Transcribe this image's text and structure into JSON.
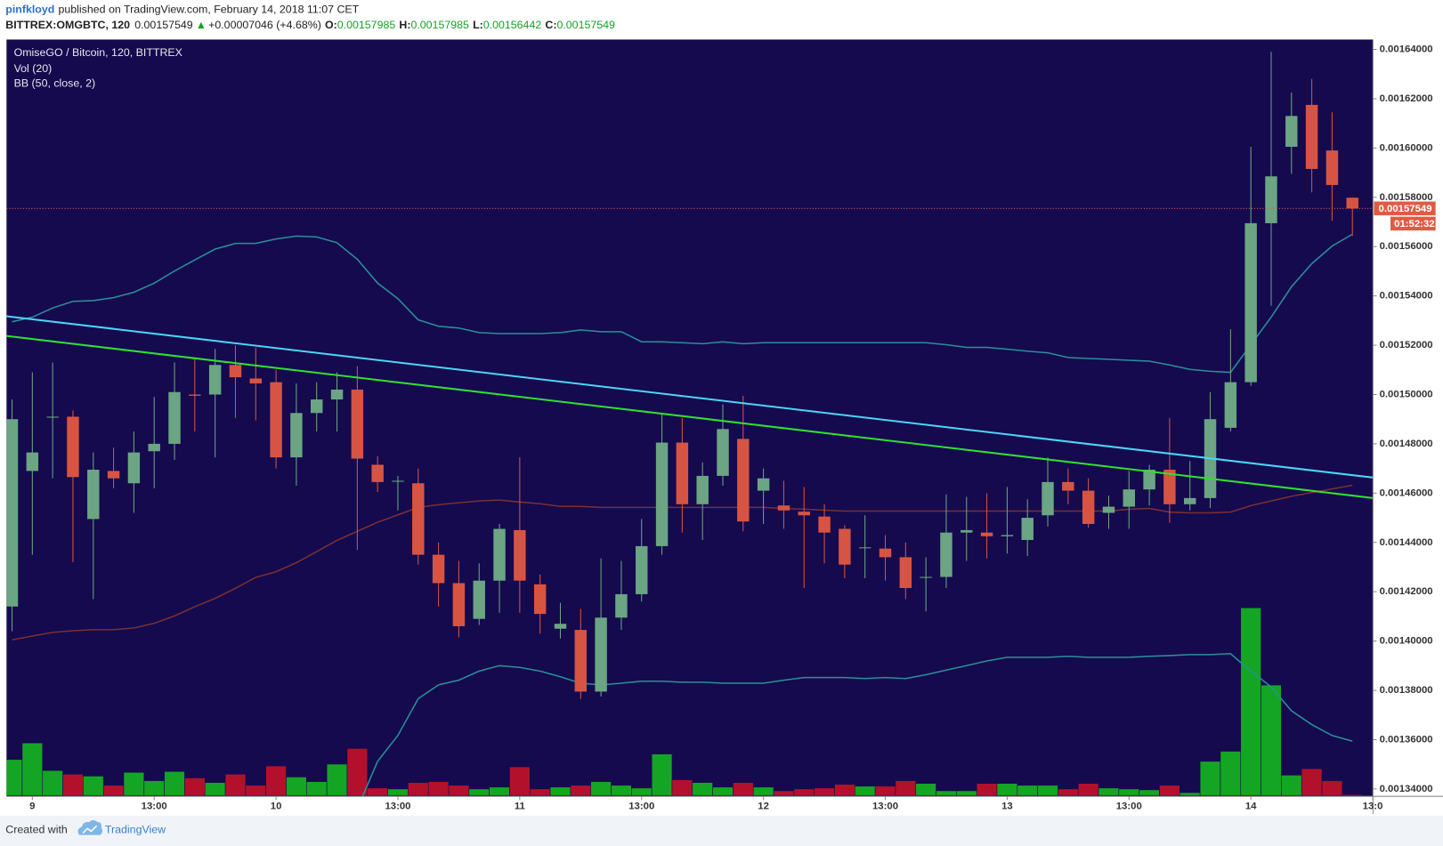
{
  "header": {
    "author": "pinfkloyd",
    "published": "published on TradingView.com, February 14, 2018 11:07 CET",
    "symbol": "BITTREX:OMGBTC, 120",
    "price": "0.00157549",
    "arrow": "▲",
    "change": "+0.00007046 (+4.68%)",
    "o_label": "O:",
    "o": "0.00157985",
    "h_label": "H:",
    "h": "0.00157985",
    "l_label": "L:",
    "l": "0.00156442",
    "c_label": "C:",
    "c": "0.00157549"
  },
  "chart_data": {
    "type": "candlestick",
    "title": "OmiseGO / Bitcoin, 120, BITTREX",
    "indicators": [
      "Vol (20)",
      "BB (50, close, 2)"
    ],
    "background": "#150a4e",
    "up_color": "#6ba583",
    "down_color": "#d75442",
    "categories": [
      null,
      "9",
      null,
      null,
      null,
      null,
      null,
      "13:00",
      null,
      null,
      null,
      null,
      null,
      "10",
      null,
      null,
      null,
      null,
      null,
      "13:00",
      null,
      null,
      null,
      null,
      null,
      "11",
      null,
      null,
      null,
      null,
      null,
      "13:00",
      null,
      null,
      null,
      null,
      null,
      "12",
      null,
      null,
      null,
      null,
      null,
      "13:00",
      null,
      null,
      null,
      null,
      null,
      "13",
      null,
      null,
      null,
      null,
      null,
      "13:00",
      null,
      null,
      null,
      null,
      null,
      "14",
      null,
      null,
      null,
      null,
      null,
      "13:0"
    ],
    "open": [
      0.001414,
      0.001469,
      0.001491,
      0.001491,
      0.0014495,
      0.001469,
      0.001464,
      0.001477,
      0.00148,
      0.0015,
      0.0015,
      0.001512,
      0.0015065,
      0.001505,
      0.0014745,
      0.0014925,
      0.001498,
      0.001502,
      0.0014715,
      0.001465,
      0.001464,
      0.001435,
      0.0014235,
      0.001409,
      0.0014245,
      0.001445,
      0.001423,
      0.001405,
      0.0014045,
      0.0013795,
      0.0014095,
      0.001419,
      0.0014385,
      0.0014805,
      0.0014555,
      0.001467,
      0.001482,
      0.001461,
      0.001455,
      0.0014525,
      0.0014505,
      0.0014455,
      0.001438,
      0.0014375,
      0.001434,
      0.001426,
      0.001426,
      0.001444,
      0.001444,
      0.0014425,
      0.001441,
      0.001451,
      0.0014645,
      0.001461,
      0.001452,
      0.0014545,
      0.0014615,
      0.0014695,
      0.0014555,
      0.001458,
      0.0014865,
      0.001505,
      0.0015695,
      0.0016005,
      0.0016175,
      0.001599,
      0.00157985,
      null
    ],
    "high": [
      0.001498,
      0.001509,
      0.001513,
      0.0014935,
      0.0014765,
      0.0014785,
      0.001485,
      0.001499,
      0.001513,
      0.0015145,
      0.0015185,
      0.00152,
      0.001519,
      0.00151,
      0.0015045,
      0.001505,
      0.001509,
      0.0015115,
      0.001475,
      0.001467,
      0.00147,
      0.00144,
      0.0014325,
      0.0014315,
      0.0014475,
      0.0014745,
      0.001427,
      0.0014155,
      0.001413,
      0.0014335,
      0.0014325,
      0.0014495,
      0.001492,
      0.0014905,
      0.0014725,
      0.001496,
      0.0014995,
      0.00147,
      0.001465,
      0.0014625,
      0.0014555,
      0.001447,
      0.001451,
      0.001443,
      0.00144,
      0.001434,
      0.0014595,
      0.0014585,
      0.00146,
      0.0014625,
      0.0014575,
      0.0014745,
      0.00147,
      0.001466,
      0.001459,
      0.001469,
      0.0014715,
      0.0014905,
      0.001473,
      0.001501,
      0.0015265,
      0.0016005,
      0.001639,
      0.0016225,
      0.001628,
      0.0016145,
      0.00157985,
      null
    ],
    "low": [
      0.001404,
      0.001435,
      0.001466,
      0.001432,
      0.001417,
      0.001462,
      0.001452,
      0.001462,
      0.0014735,
      0.001485,
      0.0014745,
      0.0014905,
      0.0014895,
      0.00147,
      0.001463,
      0.001485,
      0.001485,
      0.001437,
      0.0014605,
      0.001453,
      0.001431,
      0.001414,
      0.0014015,
      0.0014065,
      0.0014115,
      0.0014115,
      0.001403,
      0.001401,
      0.0013765,
      0.0013775,
      0.0014045,
      0.001416,
      0.001435,
      0.001444,
      0.001441,
      0.001463,
      0.0014445,
      0.0014475,
      0.0014455,
      0.0014215,
      0.0014315,
      0.0014255,
      0.0014255,
      0.0014245,
      0.001417,
      0.001412,
      0.0014215,
      0.0014325,
      0.0014335,
      0.0014355,
      0.0014345,
      0.0014465,
      0.0014555,
      0.001446,
      0.0014455,
      0.0014455,
      0.001455,
      0.001448,
      0.001453,
      0.001454,
      0.001485,
      0.0015035,
      0.001536,
      0.0015895,
      0.001582,
      0.0015705,
      0.00156442,
      null
    ],
    "close": [
      0.00149,
      0.0014765,
      0.001491,
      0.0014665,
      0.0014695,
      0.001466,
      0.0014765,
      0.00148,
      0.001501,
      0.0014995,
      0.001512,
      0.001507,
      0.0015045,
      0.0014745,
      0.0014925,
      0.001498,
      0.001502,
      0.001474,
      0.0014645,
      0.001465,
      0.001435,
      0.0014235,
      0.001406,
      0.0014245,
      0.0014455,
      0.0014245,
      0.001411,
      0.001407,
      0.0013795,
      0.0014095,
      0.001419,
      0.0014385,
      0.0014805,
      0.0014555,
      0.001467,
      0.001486,
      0.0014485,
      0.001466,
      0.001453,
      0.001451,
      0.001444,
      0.001431,
      0.001438,
      0.001434,
      0.0014215,
      0.001426,
      0.001444,
      0.001445,
      0.0014425,
      0.001443,
      0.00145,
      0.0014645,
      0.001461,
      0.0014475,
      0.0014545,
      0.0014615,
      0.0014695,
      0.0014555,
      0.001458,
      0.00149,
      0.001505,
      0.0015695,
      0.0015885,
      0.001613,
      0.0015915,
      0.001585,
      0.00157549,
      null
    ],
    "volume": {
      "up_color": "#15a524",
      "down_color": "#b3112b",
      "values": [
        39,
        57,
        27,
        23,
        21,
        11,
        25,
        16,
        26,
        19,
        14,
        23,
        11,
        32,
        20,
        15,
        34,
        51,
        8,
        7,
        14,
        15,
        11,
        7,
        9,
        31,
        7,
        9,
        11,
        15,
        11,
        8,
        45,
        17,
        14,
        9,
        14,
        9,
        5,
        7,
        8,
        12,
        10,
        10,
        16,
        13,
        5,
        5,
        13,
        13,
        11,
        11,
        7,
        13,
        8,
        7,
        6,
        11,
        3,
        37,
        48,
        204,
        120,
        22,
        29,
        16,
        1,
        null
      ]
    },
    "bollinger": {
      "band_color": "#2a8f98",
      "middle_color": "#7a2f33",
      "upper": [
        0.0015295,
        0.0015314,
        0.0015351,
        0.0015378,
        0.0015381,
        0.0015393,
        0.0015415,
        0.0015452,
        0.0015501,
        0.0015546,
        0.001559,
        0.0015613,
        0.0015613,
        0.0015631,
        0.0015643,
        0.0015639,
        0.0015616,
        0.0015549,
        0.0015452,
        0.0015389,
        0.0015303,
        0.0015277,
        0.001527,
        0.0015251,
        0.0015247,
        0.0015247,
        0.0015247,
        0.0015251,
        0.0015262,
        0.0015255,
        0.0015255,
        0.0015214,
        0.0015214,
        0.001521,
        0.0015206,
        0.0015214,
        0.0015206,
        0.001521,
        0.001521,
        0.001521,
        0.001521,
        0.001521,
        0.001521,
        0.001521,
        0.001521,
        0.001521,
        0.0015202,
        0.0015191,
        0.0015191,
        0.0015184,
        0.0015176,
        0.0015169,
        0.001515,
        0.0015146,
        0.0015143,
        0.0015139,
        0.0015135,
        0.001512,
        0.0015102,
        0.0015094,
        0.001509,
        0.0015202,
        0.0015314,
        0.0015437,
        0.0015531,
        0.0015602,
        0.001565,
        null
      ],
      "middle": [
        0.0014005,
        0.001402,
        0.0014035,
        0.0014042,
        0.0014046,
        0.0014046,
        0.0014053,
        0.0014072,
        0.0014102,
        0.0014139,
        0.0014173,
        0.0014214,
        0.0014258,
        0.0014281,
        0.0014318,
        0.0014363,
        0.0014408,
        0.0014445,
        0.0014482,
        0.0014512,
        0.0014542,
        0.0014553,
        0.0014561,
        0.0014568,
        0.0014572,
        0.0014564,
        0.0014557,
        0.0014546,
        0.0014546,
        0.0014542,
        0.0014542,
        0.0014542,
        0.0014542,
        0.0014542,
        0.0014542,
        0.0014542,
        0.0014542,
        0.0014542,
        0.0014538,
        0.0014535,
        0.0014531,
        0.0014527,
        0.0014527,
        0.0014527,
        0.0014527,
        0.0014527,
        0.0014527,
        0.0014527,
        0.0014527,
        0.0014527,
        0.0014527,
        0.0014527,
        0.0014527,
        0.0014527,
        0.0014527,
        0.0014535,
        0.0014538,
        0.0014523,
        0.001452,
        0.001452,
        0.0014523,
        0.0014549,
        0.0014568,
        0.0014587,
        0.0014602,
        0.0014617,
        0.0014632,
        null
      ],
      "lower": [
        null,
        null,
        null,
        null,
        null,
        null,
        null,
        null,
        null,
        null,
        null,
        null,
        null,
        null,
        null,
        null,
        null,
        0.001332,
        0.0013512,
        0.0013617,
        0.0013766,
        0.0013822,
        0.0013841,
        0.0013878,
        0.00139,
        0.0013893,
        0.0013878,
        0.0013855,
        0.0013829,
        0.0013822,
        0.0013829,
        0.0013837,
        0.0013837,
        0.0013833,
        0.0013833,
        0.0013829,
        0.0013829,
        0.0013829,
        0.0013841,
        0.0013852,
        0.0013852,
        0.0013852,
        0.0013848,
        0.0013852,
        0.0013848,
        0.0013863,
        0.0013882,
        0.00139,
        0.0013919,
        0.0013934,
        0.0013934,
        0.0013934,
        0.0013938,
        0.0013934,
        0.0013934,
        0.0013934,
        0.0013938,
        0.0013941,
        0.0013945,
        0.0013945,
        0.0013949,
        0.0013878,
        0.0013814,
        0.0013717,
        0.0013661,
        0.0013617,
        0.0013594,
        null
      ]
    },
    "trendlines": [
      {
        "color": "#4ad6f6",
        "start": [
          0,
          0.0015315
        ],
        "end": [
          66,
          0.0014673
        ]
      },
      {
        "color": "#2fe02f",
        "start": [
          0,
          0.0015235
        ],
        "end": [
          66,
          0.001459
        ]
      }
    ],
    "last_price": {
      "label": "0.00157549",
      "countdown": "01:52:32",
      "color": "#e15a43"
    },
    "ylim": [
      0.001337,
      0.001644
    ],
    "yticks": [
      {
        "value": 0.00134,
        "label": "0.00134000"
      },
      {
        "value": 0.00136,
        "label": "0.00136000"
      },
      {
        "value": 0.00138,
        "label": "0.00138000"
      },
      {
        "value": 0.0014,
        "label": "0.00140000"
      },
      {
        "value": 0.00142,
        "label": "0.00142000"
      },
      {
        "value": 0.00144,
        "label": "0.00144000"
      },
      {
        "value": 0.00146,
        "label": "0.00146000"
      },
      {
        "value": 0.00148,
        "label": "0.00148000"
      },
      {
        "value": 0.0015,
        "label": "0.00150000"
      },
      {
        "value": 0.00152,
        "label": "0.00152000"
      },
      {
        "value": 0.00154,
        "label": "0.00154000"
      },
      {
        "value": 0.00156,
        "label": "0.00156000"
      },
      {
        "value": 0.00158,
        "label": "0.00158000"
      },
      {
        "value": 0.0016,
        "label": "0.00160000"
      },
      {
        "value": 0.00162,
        "label": "0.00162000"
      },
      {
        "value": 0.00164,
        "label": "0.00164000"
      }
    ]
  },
  "footer": {
    "created": "Created with",
    "brand": "TradingView"
  }
}
